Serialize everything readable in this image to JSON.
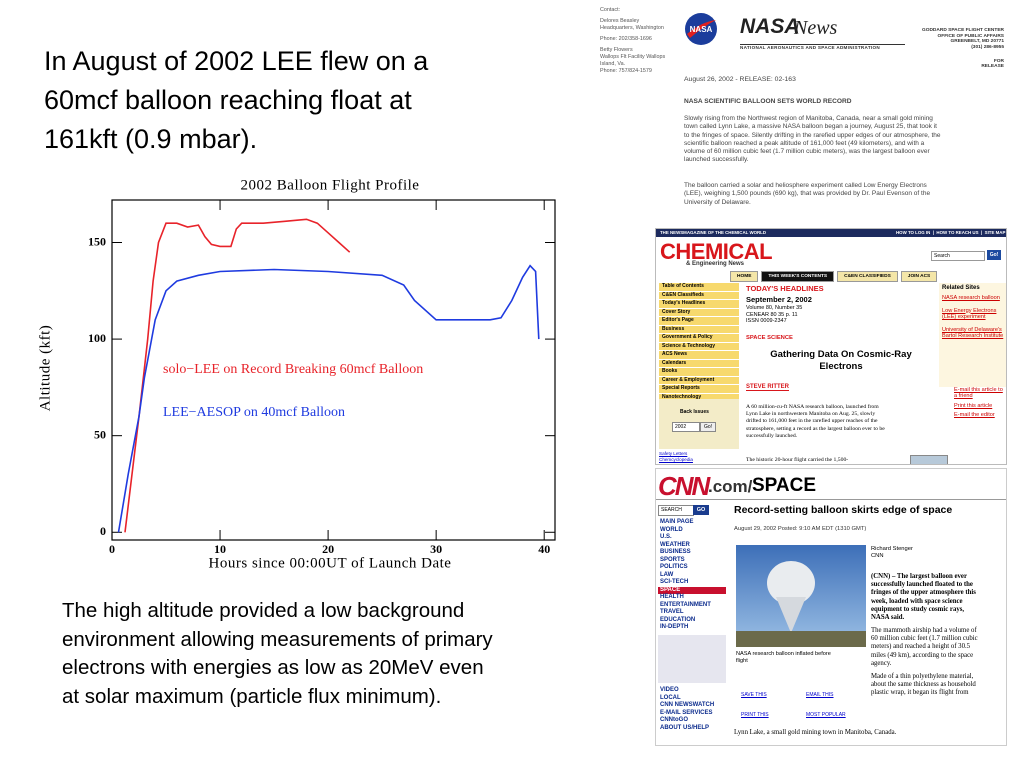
{
  "heading": [
    "In August of 2002 LEE flew on a",
    "60mcf balloon reaching float at",
    "161kft (0.9 mbar)."
  ],
  "chart_data": {
    "type": "line",
    "title": "2002 Balloon Flight Profile",
    "x_label": "Hours since 00:00UT of Launch Date",
    "y_label": "Altitude (kft)",
    "xlim": [
      0,
      41
    ],
    "ylim": [
      -4,
      172
    ],
    "xticks": [
      0,
      10,
      20,
      30,
      40
    ],
    "yticks": [
      0,
      50,
      100,
      150
    ],
    "series": [
      {
        "color": "#e8232a",
        "x": [
          1.2,
          2.5,
          3.3,
          3.8,
          4.3,
          5,
          6,
          7,
          8,
          8.6,
          9.2,
          10,
          11,
          11.5,
          12,
          14,
          16,
          18,
          19,
          20,
          21,
          22
        ],
        "values": [
          0,
          60,
          100,
          130,
          150,
          160,
          160,
          158,
          159,
          153,
          149,
          148,
          148,
          157,
          160,
          160,
          161,
          162,
          160,
          155,
          150,
          145
        ]
      },
      {
        "color": "#1f3be0",
        "x": [
          0.6,
          1.5,
          2.5,
          3,
          4,
          5,
          6,
          8,
          10,
          15,
          20,
          25,
          27,
          28,
          30,
          32,
          35,
          36,
          37,
          38,
          38.7,
          39.2,
          39.5
        ],
        "values": [
          0,
          30,
          60,
          80,
          110,
          125,
          130,
          133,
          135,
          136,
          135,
          133,
          128,
          120,
          110,
          110,
          110,
          111,
          120,
          132,
          138,
          135,
          100
        ]
      }
    ],
    "annotations": [
      {
        "text": "solo−LEE on Record Breaking 60mcf Balloon",
        "color": "#e8232a"
      },
      {
        "text": "LEE−AESOP on 40mcf Balloon",
        "color": "#1f3be0"
      }
    ]
  },
  "caption": [
    "The high altitude provided a low background",
    "environment allowing measurements of primary",
    "electrons with energies as low as 20MeV even",
    "at solar maximum (particle flux minimum)."
  ],
  "nasa": {
    "contacts": [
      "Contact:",
      "",
      "Delores Beasley",
      "Headquarters, Washington",
      "",
      "Phone: 202/358-1696",
      "",
      "Betty Flowers",
      "Wallops Flt Facility Wallops",
      "Island, Va.",
      "Phone: 757/824-1579"
    ],
    "logo": "NASA",
    "news": "News",
    "agency": "NATIONAL AERONAUTICS AND SPACE ADMINISTRATION",
    "address": [
      "GODDARD SPACE FLIGHT CENTER",
      "OFFICE OF PUBLIC AFFAIRS",
      "GREENBELT, MD 20771",
      "(301) 286-8955"
    ],
    "release_tag": "FOR RELEASE",
    "dateline": "August 26, 2002 - RELEASE: 02-163",
    "headline": "NASA SCIENTIFIC BALLOON SETS WORLD RECORD",
    "p1": [
      "Slowly rising from the Northwest region of Manitoba, Canada, near a small gold mining",
      "town called Lynn Lake, a massive NASA balloon began a journey, August 25, that took it",
      "to the fringes of space. Silently drifting in the rarefied upper edges of our atmosphere, the",
      "scientific balloon reached a peak altitude of 161,000 feet (49 kilometers), and with a",
      "volume of 60 million cubic feet (1.7 million cubic meters), was the largest balloon ever",
      "launched successfully."
    ],
    "p2": [
      "The balloon carried a solar and heliosphere experiment called Low Energy Electrons",
      "(LEE), weighing 1,500 pounds (690 kg), that was provided by Dr. Paul Evenson of the",
      "University of Delaware."
    ]
  },
  "cen": {
    "topbar": "THE NEWSMAGAZINE OF THE CHEMICAL WORLD",
    "toplinks": "HOW TO LOG IN  |  HOW TO REACH US  |  SITE MAP",
    "logo": "CHEMICAL",
    "logo_sub": "& Engineering News",
    "search": "Search",
    "go": "Go!",
    "tabs": [
      "HOME",
      "THIS WEEK'S CONTENTS",
      "C&EN CLASSIFIEDS",
      "JOIN ACS"
    ],
    "nav": [
      "Table of Contents",
      "C&EN Classifieds",
      "Today's Headlines",
      "Cover Story",
      "Editor's Page",
      "Business",
      "Government & Policy",
      "Science & Technology",
      "ACS News",
      "Calendars",
      "Books",
      "Career & Employment",
      "Special Reports",
      "Nanotechnology",
      "What's That Stuff?"
    ],
    "back_issues": "Back Issues",
    "year": "2002",
    "year_go": "Go!",
    "footer_links": [
      "Safety Letters",
      "Chemcyclopedia"
    ],
    "section": "TODAY'S HEADLINES",
    "date": "September 2, 2002",
    "meta": [
      "Volume 80, Number 35",
      "CENEAR 80 35 p. 11",
      "ISSN 0009-2347"
    ],
    "kicker": "SPACE SCIENCE",
    "headline": [
      "Gathering Data On Cosmic-Ray",
      "Electrons"
    ],
    "byline": "STEVE RITTER",
    "body": [
      "A 60 million-cu-ft NASA research balloon, launched from",
      "Lynn Lake in northwestern Manitoba on Aug. 25, slowly",
      "drifted to 161,000 feet in the rarefied upper reaches of the",
      "stratosphere, setting a record as the largest balloon ever to be",
      "successfully launched."
    ],
    "body2": "The historic 20-hour flight carried the 1,500-",
    "related_title": "Related Sites",
    "related": [
      "NASA research balloon",
      "Low Energy Electrons (LEE) experiment",
      "University of Delaware's Bartol Research Institute"
    ],
    "tools": [
      "E-mail this article to a friend",
      "Print this article",
      "E-mail the editor"
    ]
  },
  "cnn": {
    "logo": "CNN",
    "logo_com": ".com/",
    "logo_section": "SPACE",
    "search": "SEARCH",
    "go": "GO",
    "nav": [
      "MAIN PAGE",
      "WORLD",
      "U.S.",
      "WEATHER",
      "BUSINESS",
      "SPORTS",
      "POLITICS",
      "LAW",
      "SCI-TECH",
      "SPACE",
      "HEALTH",
      "ENTERTAINMENT",
      "TRAVEL",
      "EDUCATION",
      "IN-DEPTH"
    ],
    "nav2": [
      "VIDEO",
      "LOCAL",
      "CNN NEWSWATCH",
      "E-MAIL SERVICES",
      "CNNtoGO",
      "ABOUT US/HELP"
    ],
    "headline": "Record-setting balloon skirts edge of space",
    "date": "August 29, 2002 Posted: 9:10 AM EDT (1310 GMT)",
    "photo_caption": [
      "NASA research balloon inflated before",
      "flight"
    ],
    "byline": [
      "Richard Stenger",
      "CNN"
    ],
    "lead": [
      "(CNN) – The largest balloon ever",
      "successfully launched floated to the",
      "fringes of the upper atmosphere this",
      "week, loaded with space science",
      "equipment to study cosmic rays,",
      "NASA said."
    ],
    "p2": [
      "The mammoth airship had a volume of",
      "60 million cubic feet (1.7 million cubic",
      "meters) and reached a height of 30.5",
      "miles (49 km), according to the space",
      "agency."
    ],
    "p3": [
      "Made of a thin polyethylene material,",
      "about the same thickness as household",
      "plastic wrap, it began its flight from"
    ],
    "last_line": "Lynn Lake, a small gold mining town in Manitoba, Canada.",
    "actions": [
      "SAVE THIS",
      "EMAIL THIS",
      "PRINT THIS",
      "MOST POPULAR"
    ]
  }
}
